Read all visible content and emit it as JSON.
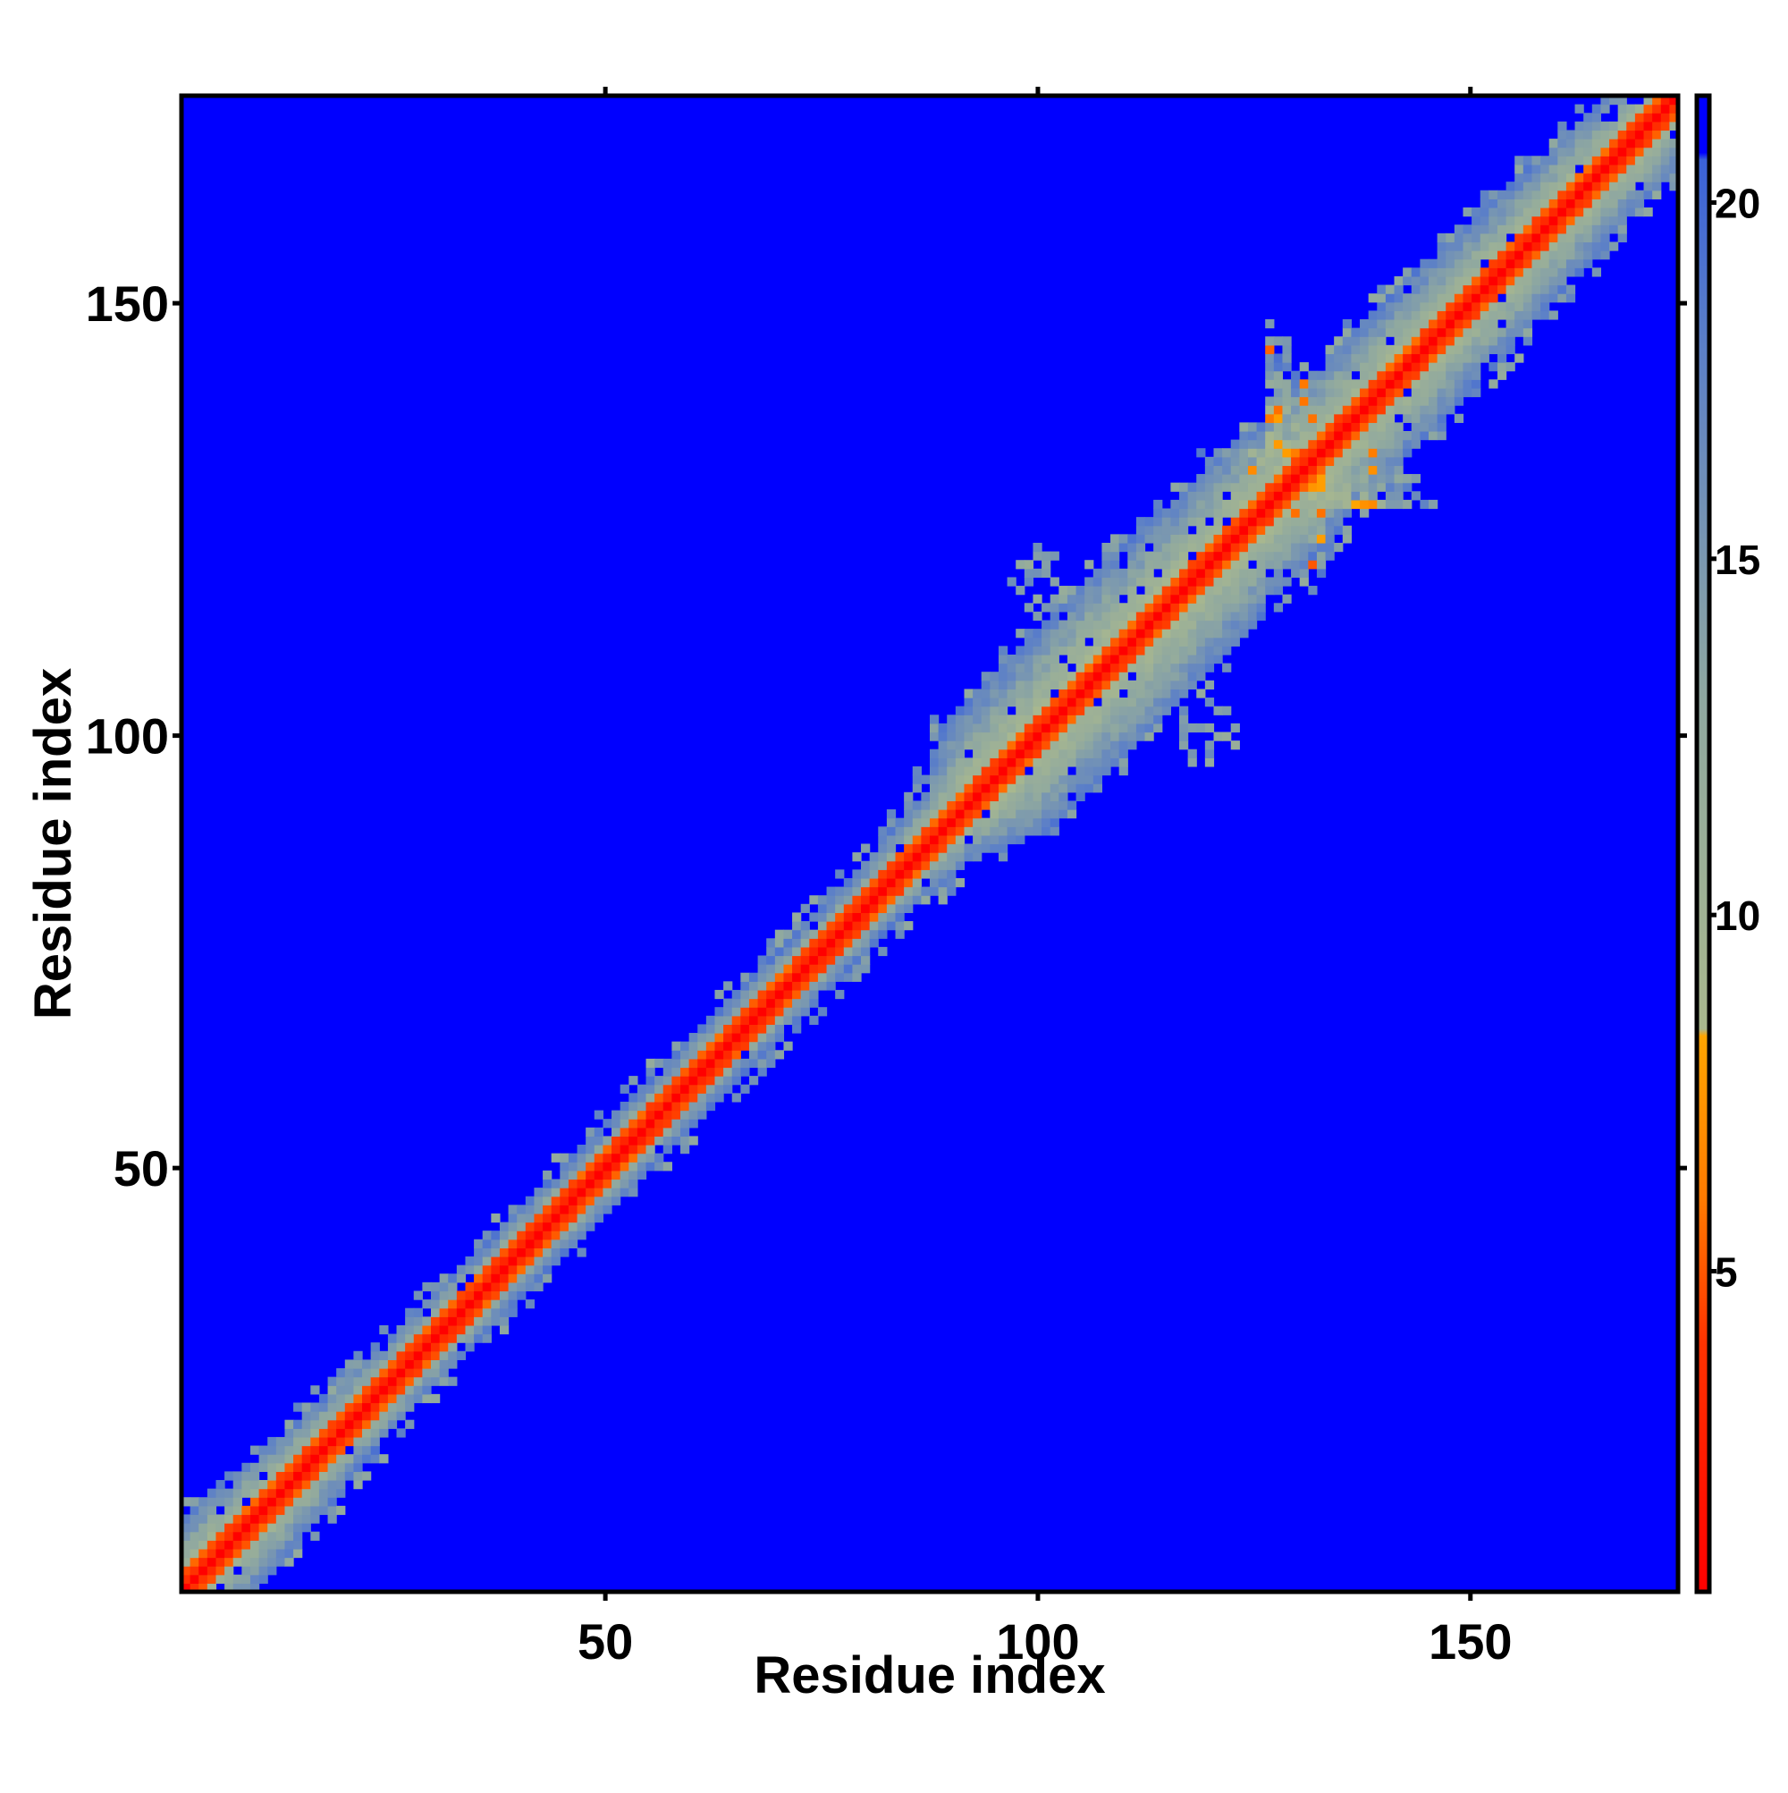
{
  "chart_data": {
    "type": "heatmap",
    "title": "",
    "xlabel": "Residue index",
    "ylabel": "Residue index",
    "xlim": [
      1,
      174
    ],
    "ylim": [
      1,
      174
    ],
    "x_ticks": [
      50,
      100,
      150
    ],
    "y_ticks": [
      50,
      100,
      150
    ],
    "n_residues": 174,
    "grid": false,
    "colorbar": {
      "location": "right",
      "range": [
        0.5,
        21.5
      ],
      "ticks": [
        5,
        10,
        15,
        20
      ],
      "stops": [
        {
          "value": 0.5,
          "color": "#ff0000"
        },
        {
          "value": 4.0,
          "color": "#ff3300"
        },
        {
          "value": 6.0,
          "color": "#ff7a00"
        },
        {
          "value": 8.3,
          "color": "#ffa500"
        },
        {
          "value": 8.4,
          "color": "#a9b88e"
        },
        {
          "value": 13.0,
          "color": "#8fa8a0"
        },
        {
          "value": 18.0,
          "color": "#5b7fc8"
        },
        {
          "value": 20.6,
          "color": "#3b62d8"
        },
        {
          "value": 20.7,
          "color": "#0000ff"
        },
        {
          "value": 21.5,
          "color": "#0000ff"
        }
      ]
    },
    "background_value": 21,
    "structure": {
      "diagonal": {
        "value": 0
      },
      "near_diagonal_contact_half_width": 2.5,
      "near_diagonal_band_half_width": [
        {
          "residue": 1,
          "half_width": 9
        },
        {
          "residue": 10,
          "half_width": 8
        },
        {
          "residue": 20,
          "half_width": 6
        },
        {
          "residue": 40,
          "half_width": 5
        },
        {
          "residue": 60,
          "half_width": 5
        },
        {
          "residue": 80,
          "half_width": 5
        },
        {
          "residue": 90,
          "half_width": 7
        },
        {
          "residue": 95,
          "half_width": 12
        },
        {
          "residue": 110,
          "half_width": 13
        },
        {
          "residue": 130,
          "half_width": 11
        },
        {
          "residue": 150,
          "half_width": 10
        },
        {
          "residue": 174,
          "half_width": 8
        }
      ],
      "antiparallel_contact_blocks": [
        {
          "residue_sum": 262,
          "from_residue": 96,
          "to_residue": 130,
          "half_width": 5
        },
        {
          "residue_sum": 262,
          "from_residue": 130,
          "to_residue": 164,
          "half_width": 5
        }
      ],
      "scattered_patches": [
        {
          "x": 100,
          "y": 118,
          "radius": 4
        },
        {
          "x": 120,
          "y": 100,
          "radius": 4
        }
      ]
    }
  }
}
